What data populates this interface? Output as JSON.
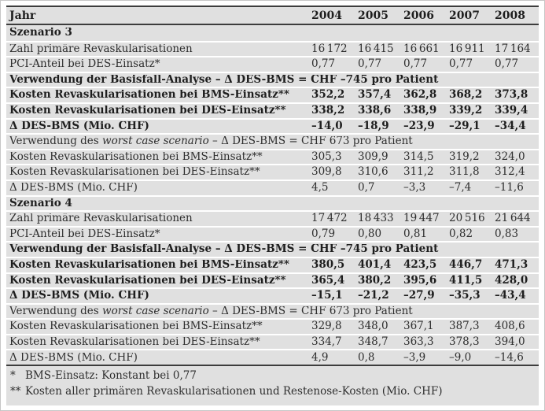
{
  "header": {
    "label": "Jahr",
    "years": [
      "2004",
      "2005",
      "2006",
      "2007",
      "2008"
    ]
  },
  "rows": [
    {
      "label": "Szenario 3"
    },
    {
      "label": "Zahl primäre Revaskularisationen",
      "values": [
        "16 172",
        "16 415",
        "16 661",
        "16 911",
        "17 164"
      ]
    },
    {
      "label": "PCI-Anteil bei DES-Einsatz*",
      "values": [
        "0,77",
        "0,77",
        "0,77",
        "0,77",
        "0,77"
      ]
    },
    {
      "label": "Verwendung der Basisfall-Analyse – Δ DES-BMS = CHF –745 pro Patient"
    },
    {
      "label": "Kosten Revaskularisationen bei BMS-Einsatz**",
      "values": [
        "352,2",
        "357,4",
        "362,8",
        "368,2",
        "373,8"
      ]
    },
    {
      "label": "Kosten Revaskularisationen bei DES-Einsatz**",
      "values": [
        "338,2",
        "338,6",
        "338,9",
        "339,2",
        "339,4"
      ]
    },
    {
      "label": "Δ DES-BMS (Mio. CHF)",
      "values": [
        "–14,0",
        "–18,9",
        "–23,9",
        "–29,1",
        "–34,4"
      ]
    },
    {
      "prefix": "Verwendung des ",
      "italic": "worst case scenario",
      "suffix": " – Δ DES-BMS = CHF 673 pro Patient"
    },
    {
      "label": "Kosten Revaskularisationen bei BMS-Einsatz**",
      "values": [
        "305,3",
        "309,9",
        "314,5",
        "319,2",
        "324,0"
      ]
    },
    {
      "label": "Kosten Revaskularisationen bei DES-Einsatz**",
      "values": [
        "309,8",
        "310,6",
        "311,2",
        "311,8",
        "312,4"
      ]
    },
    {
      "label": "Δ DES-BMS (Mio. CHF)",
      "values": [
        "4,5",
        "0,7",
        "–3,3",
        "–7,4",
        "–11,6"
      ]
    },
    {
      "label": "Szenario 4"
    },
    {
      "label": "Zahl primäre Revaskularisationen",
      "values": [
        "17 472",
        "18 433",
        "19 447",
        "20 516",
        "21 644"
      ]
    },
    {
      "label": "PCI-Anteil bei DES-Einsatz*",
      "values": [
        "0,79",
        "0,80",
        "0,81",
        "0,82",
        "0,83"
      ]
    },
    {
      "label": "Verwendung der Basisfall-Analyse – Δ DES-BMS = CHF –745 pro Patient"
    },
    {
      "label": "Kosten Revaskularisationen bei BMS-Einsatz**",
      "values": [
        "380,5",
        "401,4",
        "423,5",
        "446,7",
        "471,3"
      ]
    },
    {
      "label": "Kosten Revaskularisationen bei DES-Einsatz**",
      "values": [
        "365,4",
        "380,2",
        "395,6",
        "411,5",
        "428,0"
      ]
    },
    {
      "label": "Δ DES-BMS (Mio. CHF)",
      "values": [
        "–15,1",
        "–21,2",
        "–27,9",
        "–35,3",
        "–43,4"
      ]
    },
    {
      "prefix": "Verwendung des ",
      "italic": "worst case scenario",
      "suffix": " – Δ DES-BMS = CHF 673 pro Patient"
    },
    {
      "label": "Kosten Revaskularisationen bei BMS-Einsatz**",
      "values": [
        "329,8",
        "348,0",
        "367,1",
        "387,3",
        "408,6"
      ]
    },
    {
      "label": "Kosten Revaskularisationen bei DES-Einsatz**",
      "values": [
        "334,7",
        "348,7",
        "363,3",
        "378,3",
        "394,0"
      ]
    },
    {
      "label": "Δ DES-BMS (Mio. CHF)",
      "values": [
        "4,9",
        "0,8",
        "–3,9",
        "–9,0",
        "–14,6"
      ]
    }
  ],
  "footnotes": [
    {
      "marker": "*",
      "text": "BMS-Einsatz: Konstant bei 0,77"
    },
    {
      "marker": "**",
      "text": "Kosten aller primären Revaskularisationen und Restenose-Kosten (Mio. CHF)"
    }
  ],
  "colors": {
    "table_bg": "#e0e0e0",
    "rule_dark": "#3d3d3d",
    "separator": "#ffffff",
    "text": "#2e2e2e"
  }
}
